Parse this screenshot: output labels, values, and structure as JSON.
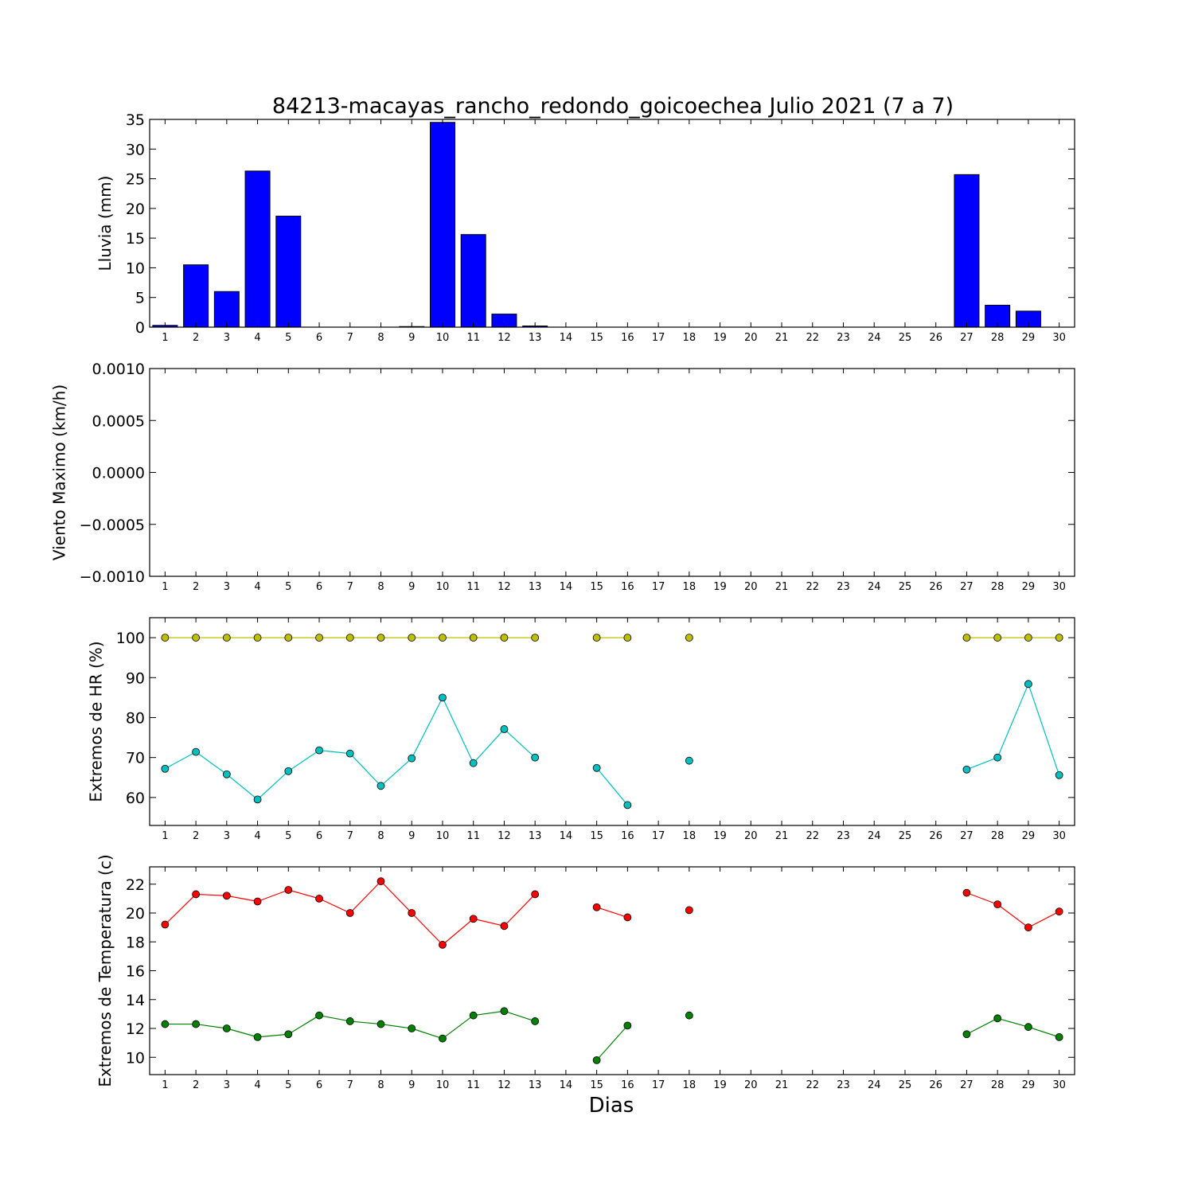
{
  "title": "84213-macayas_rancho_redondo_goicoechea Julio 2021  (7 a 7)",
  "xlabel": "Dias",
  "chart_data": [
    {
      "type": "bar",
      "ylabel": "Lluvia (mm)",
      "categories": [
        "1",
        "2",
        "3",
        "4",
        "5",
        "6",
        "7",
        "8",
        "9",
        "10",
        "11",
        "12",
        "13",
        "14",
        "15",
        "16",
        "17",
        "18",
        "19",
        "20",
        "21",
        "22",
        "23",
        "24",
        "25",
        "26",
        "27",
        "28",
        "29",
        "30"
      ],
      "x": [
        1,
        2,
        3,
        4,
        5,
        6,
        7,
        8,
        9,
        10,
        11,
        12,
        13,
        15,
        16,
        17,
        18,
        27,
        28,
        29
      ],
      "values": [
        0.3,
        10.5,
        6.0,
        26.3,
        18.7,
        0,
        0,
        0,
        0.1,
        34.5,
        15.6,
        2.2,
        0.2,
        0,
        0,
        0,
        0,
        25.7,
        3.7,
        2.7
      ],
      "ylim": [
        0,
        35
      ],
      "yticks": [
        "0",
        "5",
        "10",
        "15",
        "20",
        "25",
        "30",
        "35"
      ],
      "color": "#0000ff"
    },
    {
      "type": "line",
      "ylabel": "Viento Maximo (km/h)",
      "categories": [
        "1",
        "2",
        "3",
        "4",
        "5",
        "6",
        "7",
        "8",
        "9",
        "10",
        "11",
        "12",
        "13",
        "14",
        "15",
        "16",
        "17",
        "18",
        "19",
        "20",
        "21",
        "22",
        "23",
        "24",
        "25",
        "26",
        "27",
        "28",
        "29",
        "30"
      ],
      "series": [],
      "ylim": [
        -0.001,
        0.001
      ],
      "yticks": [
        "−0.0010",
        "−0.0005",
        "0.0000",
        "0.0005",
        "0.0010"
      ]
    },
    {
      "type": "line",
      "ylabel": "Extremos de HR (%)",
      "categories": [
        "1",
        "2",
        "3",
        "4",
        "5",
        "6",
        "7",
        "8",
        "9",
        "10",
        "11",
        "12",
        "13",
        "14",
        "15",
        "16",
        "17",
        "18",
        "19",
        "20",
        "21",
        "22",
        "23",
        "24",
        "25",
        "26",
        "27",
        "28",
        "29",
        "30"
      ],
      "ylim": [
        53,
        105
      ],
      "yticks": [
        "60",
        "70",
        "80",
        "90",
        "100"
      ],
      "series": [
        {
          "color": "#bfbf00",
          "points": [
            [
              1,
              100
            ],
            [
              2,
              100
            ],
            [
              3,
              100
            ],
            [
              4,
              100
            ],
            [
              5,
              100
            ],
            [
              6,
              100
            ],
            [
              7,
              100
            ],
            [
              8,
              100
            ],
            [
              9,
              100
            ],
            [
              10,
              100
            ],
            [
              11,
              100
            ],
            [
              12,
              100
            ],
            [
              13,
              100
            ],
            [
              15,
              100
            ],
            [
              16,
              100
            ],
            [
              18,
              100
            ],
            [
              27,
              100
            ],
            [
              28,
              100
            ],
            [
              29,
              100
            ],
            [
              30,
              100
            ]
          ]
        },
        {
          "color": "#00bfbf",
          "points": [
            [
              1,
              67.2
            ],
            [
              2,
              71.4
            ],
            [
              3,
              65.8
            ],
            [
              4,
              59.5
            ],
            [
              5,
              66.6
            ],
            [
              6,
              71.8
            ],
            [
              7,
              71.0
            ],
            [
              8,
              62.9
            ],
            [
              9,
              69.8
            ],
            [
              10,
              85.0
            ],
            [
              11,
              68.6
            ],
            [
              12,
              77.1
            ],
            [
              13,
              70.0
            ],
            [
              15,
              67.4
            ],
            [
              16,
              58.1
            ],
            [
              18,
              69.2
            ],
            [
              27,
              67.0
            ],
            [
              28,
              70.0
            ],
            [
              29,
              88.4
            ],
            [
              30,
              65.6
            ]
          ]
        }
      ]
    },
    {
      "type": "line",
      "ylabel": "Extremos de Temperatura (c)",
      "categories": [
        "1",
        "2",
        "3",
        "4",
        "5",
        "6",
        "7",
        "8",
        "9",
        "10",
        "11",
        "12",
        "13",
        "14",
        "15",
        "16",
        "17",
        "18",
        "19",
        "20",
        "21",
        "22",
        "23",
        "24",
        "25",
        "26",
        "27",
        "28",
        "29",
        "30"
      ],
      "ylim": [
        8.8,
        23.2
      ],
      "yticks": [
        "10",
        "12",
        "14",
        "16",
        "18",
        "20",
        "22"
      ],
      "series": [
        {
          "color": "#ff0000",
          "points": [
            [
              1,
              19.2
            ],
            [
              2,
              21.3
            ],
            [
              3,
              21.2
            ],
            [
              4,
              20.8
            ],
            [
              5,
              21.6
            ],
            [
              6,
              21.0
            ],
            [
              7,
              20.0
            ],
            [
              8,
              22.2
            ],
            [
              9,
              20.0
            ],
            [
              10,
              17.8
            ],
            [
              11,
              19.6
            ],
            [
              12,
              19.1
            ],
            [
              13,
              21.3
            ],
            [
              15,
              20.4
            ],
            [
              16,
              19.7
            ],
            [
              18,
              20.2
            ],
            [
              27,
              21.4
            ],
            [
              28,
              20.6
            ],
            [
              29,
              19.0
            ],
            [
              30,
              20.1
            ]
          ]
        },
        {
          "color": "#008000",
          "points": [
            [
              1,
              12.3
            ],
            [
              2,
              12.3
            ],
            [
              3,
              12.0
            ],
            [
              4,
              11.4
            ],
            [
              5,
              11.6
            ],
            [
              6,
              12.9
            ],
            [
              7,
              12.5
            ],
            [
              8,
              12.3
            ],
            [
              9,
              12.0
            ],
            [
              10,
              11.3
            ],
            [
              11,
              12.9
            ],
            [
              12,
              13.2
            ],
            [
              13,
              12.5
            ],
            [
              15,
              9.8
            ],
            [
              16,
              12.2
            ],
            [
              18,
              12.9
            ],
            [
              27,
              11.6
            ],
            [
              28,
              12.7
            ],
            [
              29,
              12.1
            ],
            [
              30,
              11.4
            ]
          ]
        }
      ]
    }
  ]
}
